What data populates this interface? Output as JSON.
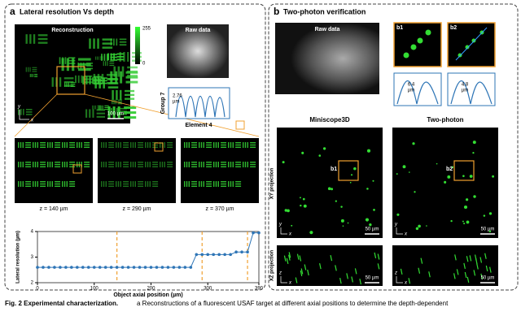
{
  "panel_a": {
    "label": "a",
    "title": "Lateral resolution Vs depth",
    "reconstruction": "Reconstruction",
    "cbar_max": "255",
    "cbar_min": "0",
    "scale_bar": "100 µm",
    "axis_y": "y",
    "axis_x": "x",
    "raw": "Raw data",
    "group": "Group 7",
    "profile_value": "2.76",
    "profile_unit": "µm",
    "element": "Element 4",
    "depths": [
      "z = 140 µm",
      "z = 290 µm",
      "z = 370 µm"
    ]
  },
  "panel_b": {
    "label": "b",
    "title": "Two-photon verification",
    "raw": "Raw data",
    "insets": [
      "b1",
      "b2"
    ],
    "profiles": [
      {
        "value": "6.4",
        "unit": "µm"
      },
      {
        "value": "4.8",
        "unit": "µm"
      }
    ],
    "columns": [
      "Miniscope3D",
      "Two-photon"
    ],
    "rows": [
      "XY projection",
      "XZ projection"
    ],
    "scale_bar": "50 µm",
    "axis_y": "y",
    "axis_z": "z",
    "axis_x": "x"
  },
  "caption": {
    "lead": "Fig. 2 Experimental characterization.",
    "text": "a Reconstructions of a fluorescent USAF target at different axial positions to determine the depth-dependent"
  },
  "chart_data": {
    "type": "line",
    "xlabel": "Object axial position (µm)",
    "ylabel": "Lateral resolution (µm)",
    "x": [
      0,
      10,
      20,
      30,
      40,
      50,
      60,
      70,
      80,
      90,
      100,
      110,
      120,
      130,
      140,
      150,
      160,
      170,
      180,
      190,
      200,
      210,
      220,
      230,
      240,
      250,
      260,
      270,
      280,
      290,
      300,
      310,
      320,
      330,
      340,
      350,
      360,
      370,
      380,
      390
    ],
    "series": [
      {
        "name": "Lateral resolution",
        "color": "#2e75b6",
        "values": [
          2.6,
          2.6,
          2.6,
          2.6,
          2.6,
          2.6,
          2.6,
          2.6,
          2.6,
          2.6,
          2.6,
          2.6,
          2.6,
          2.6,
          2.6,
          2.6,
          2.6,
          2.6,
          2.6,
          2.6,
          2.6,
          2.6,
          2.6,
          2.6,
          2.6,
          2.6,
          2.6,
          2.6,
          3.1,
          3.1,
          3.1,
          3.1,
          3.1,
          3.1,
          3.1,
          3.2,
          3.2,
          3.2,
          3.95,
          3.95
        ]
      }
    ],
    "vlines": [
      140,
      290,
      370
    ],
    "vline_color": "#f0a030",
    "xlim": [
      0,
      390
    ],
    "xticks": [
      0,
      100,
      200,
      300,
      390
    ],
    "ylim": [
      2,
      4
    ],
    "yticks": [
      2,
      3,
      4
    ]
  }
}
